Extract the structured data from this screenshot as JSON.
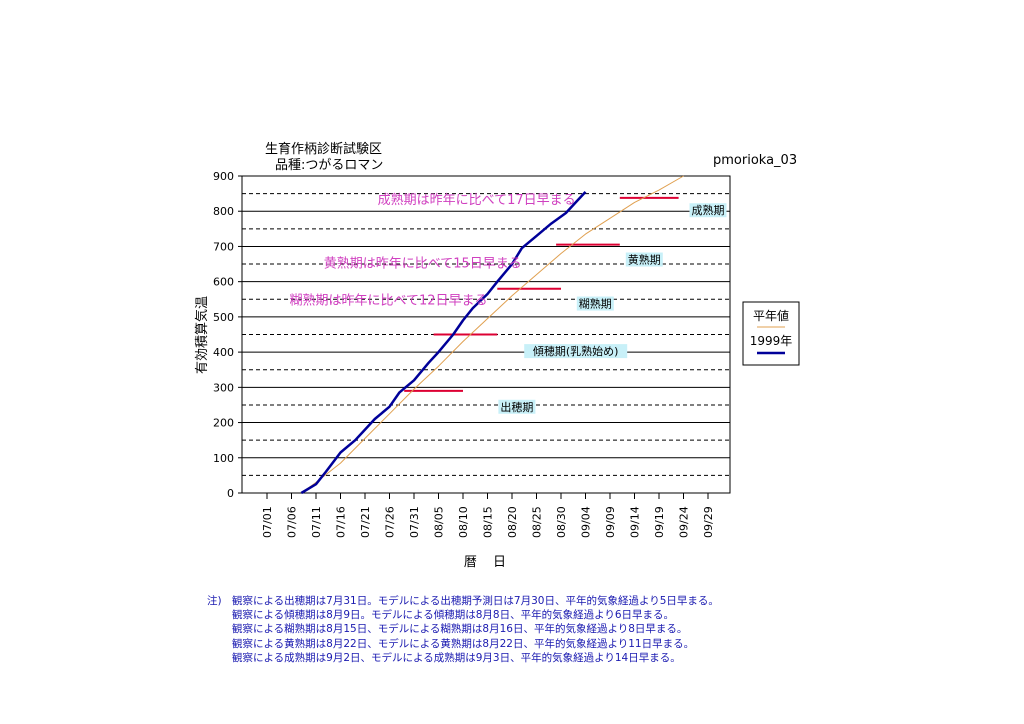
{
  "chart_data": {
    "type": "line",
    "title": [
      "生育作柄診断試験区",
      "品種:つがるロマン"
    ],
    "corner_label": "pmorioka_03",
    "xlabel": "暦 日",
    "ylabel": "有効積算気温",
    "ylim": [
      0,
      900
    ],
    "yticks": [
      0,
      100,
      200,
      300,
      400,
      500,
      600,
      700,
      800,
      900
    ],
    "xlim": [
      "07/01",
      "09/29"
    ],
    "xticks": [
      "07/01",
      "07/06",
      "07/11",
      "07/16",
      "07/21",
      "07/26",
      "07/31",
      "08/05",
      "08/10",
      "08/15",
      "08/20",
      "08/25",
      "08/30",
      "09/04",
      "09/09",
      "09/14",
      "09/19",
      "09/24",
      "09/29"
    ],
    "grid": true,
    "legend_position": "right",
    "legend": [
      "平年値",
      "1999年"
    ],
    "series": [
      {
        "name": "平年値",
        "color": "#e0a050",
        "points": [
          [
            "07/08",
            0
          ],
          [
            "07/11",
            30
          ],
          [
            "07/16",
            85
          ],
          [
            "07/21",
            155
          ],
          [
            "07/26",
            225
          ],
          [
            "07/31",
            295
          ],
          [
            "08/05",
            360
          ],
          [
            "08/10",
            430
          ],
          [
            "08/15",
            495
          ],
          [
            "08/20",
            560
          ],
          [
            "08/25",
            620
          ],
          [
            "08/30",
            680
          ],
          [
            "09/04",
            735
          ],
          [
            "09/09",
            780
          ],
          [
            "09/14",
            825
          ],
          [
            "09/19",
            860
          ],
          [
            "09/24",
            900
          ]
        ]
      },
      {
        "name": "1999年",
        "color": "#000099",
        "points": [
          [
            "07/08",
            0
          ],
          [
            "07/11",
            25
          ],
          [
            "07/13",
            60
          ],
          [
            "07/16",
            115
          ],
          [
            "07/19",
            150
          ],
          [
            "07/21",
            180
          ],
          [
            "07/23",
            210
          ],
          [
            "07/26",
            245
          ],
          [
            "07/28",
            285
          ],
          [
            "07/31",
            320
          ],
          [
            "08/03",
            370
          ],
          [
            "08/05",
            400
          ],
          [
            "08/08",
            450
          ],
          [
            "08/10",
            490
          ],
          [
            "08/12",
            525
          ],
          [
            "08/15",
            565
          ],
          [
            "08/17",
            600
          ],
          [
            "08/20",
            650
          ],
          [
            "08/22",
            695
          ],
          [
            "08/25",
            730
          ],
          [
            "08/28",
            765
          ],
          [
            "08/31",
            795
          ],
          [
            "09/02",
            825
          ],
          [
            "09/04",
            855
          ]
        ]
      }
    ],
    "stage_lines": [
      {
        "label": "出穂期",
        "value": 290,
        "x_start": "07/29",
        "x_end": "08/10"
      },
      {
        "label": "傾穂期(乳熟始め)",
        "value": 450,
        "x_start": "08/04",
        "x_end": "08/17"
      },
      {
        "label": "糊熟期",
        "value": 580,
        "x_start": "08/17",
        "x_end": "08/30"
      },
      {
        "label": "黄熟期",
        "value": 705,
        "x_start": "08/29",
        "x_end": "09/11"
      },
      {
        "label": "成熟期",
        "value": 838,
        "x_start": "09/11",
        "x_end": "09/23"
      }
    ],
    "stage_label_colors": {
      "background": "#c8f0f8",
      "text": "#000000"
    },
    "stage_line_color": "#dd0033",
    "annotations": [
      {
        "text": "成熟期は昨年に比べて17日早まる",
        "color": "#d040c0",
        "anchor_x": "09/02",
        "anchor_y": 820
      },
      {
        "text": "黄熟期は昨年に比べて15日早まる",
        "color": "#d040c0",
        "anchor_x": "08/22",
        "anchor_y": 640
      },
      {
        "text": "糊熟期は昨年に比べて12日早まる",
        "color": "#d040c0",
        "anchor_x": "08/15",
        "anchor_y": 535
      }
    ]
  },
  "notes": {
    "prefix": "注)",
    "lines": [
      "観察による出穂期は7月31日。モデルによる出穂期予測日は7月30日、平年的気象経過より5日早まる。",
      "観察による傾穂期は8月9日。モデルによる傾穂期は8月8日、平年的気象経過より6日早まる。",
      "観察による糊熟期は8月15日、モデルによる糊熟期は8月16日、平年的気象経過より8日早まる。",
      "観察による黄熟期は8月22日、モデルによる黄熟期は8月22日、平年的気象経過より11日早まる。",
      "観察による成熟期は9月2日、モデルによる成熟期は9月3日、平年的気象経過より14日早まる。"
    ]
  }
}
